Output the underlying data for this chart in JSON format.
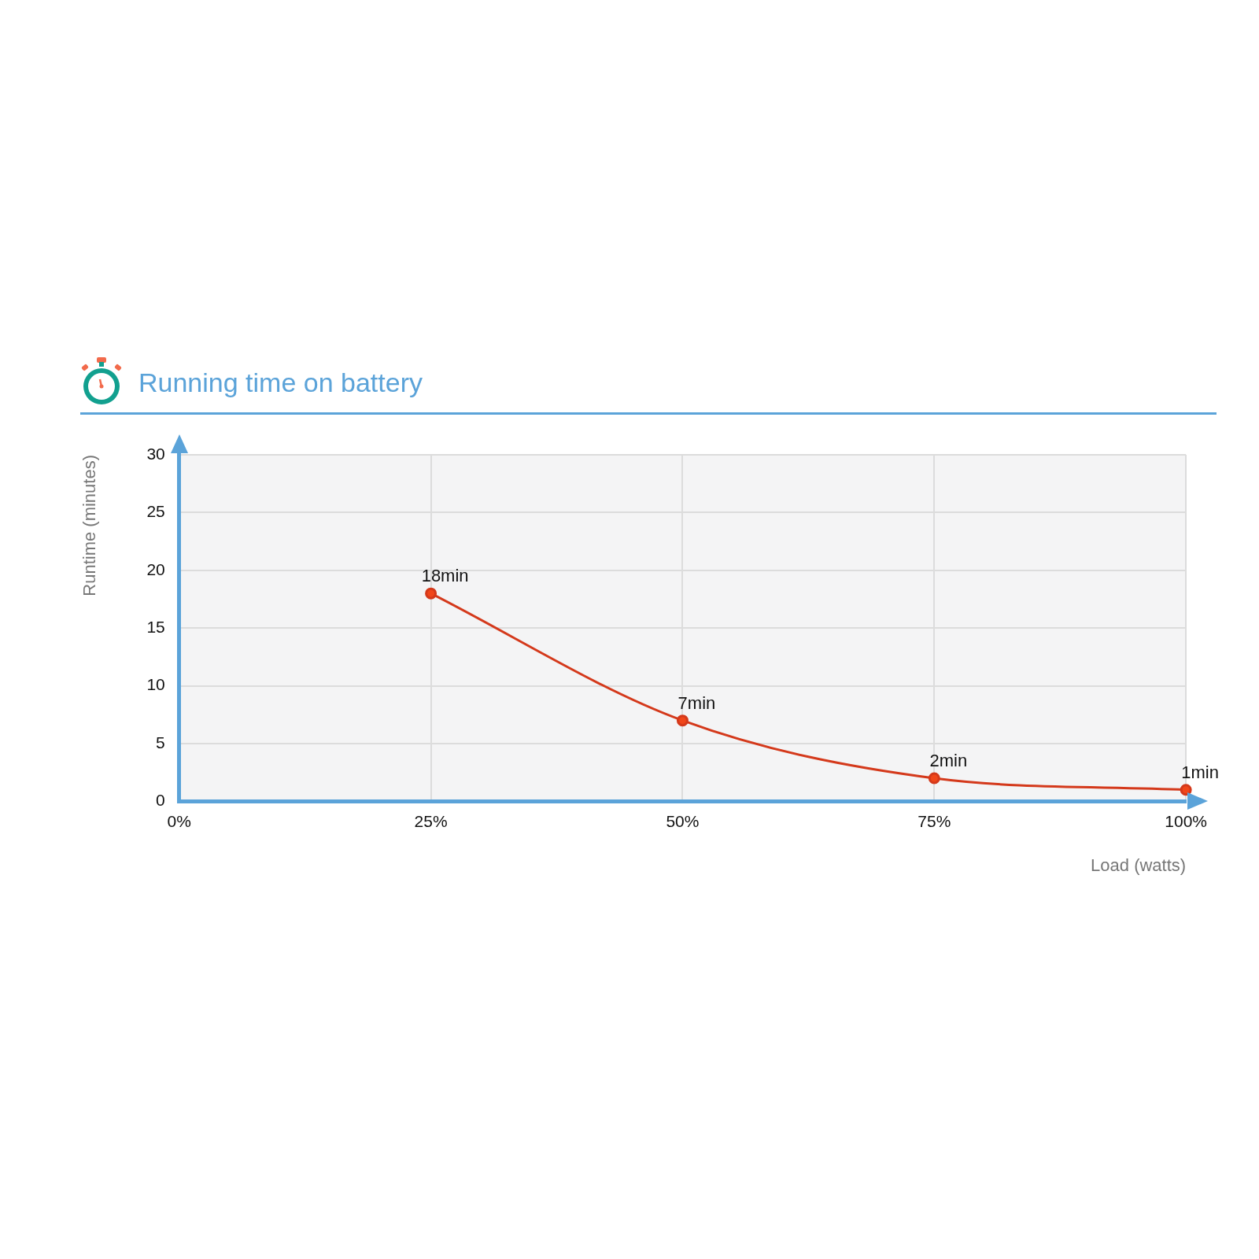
{
  "chart_data": {
    "type": "line",
    "title": "Running time on battery",
    "xlabel": "Load (watts)",
    "ylabel": "Runtime (minutes)",
    "categories": [
      "0%",
      "25%",
      "50%",
      "75%",
      "100%"
    ],
    "series": [
      {
        "color": "#d4391b",
        "values": [
          null,
          18,
          7,
          2,
          1
        ],
        "value_labels": [
          null,
          "18min",
          "7min",
          "2min",
          "1min"
        ]
      }
    ],
    "ylim": [
      0,
      30
    ],
    "yticks": [
      0,
      5,
      10,
      15,
      20,
      25,
      30
    ],
    "grid": true,
    "marker": "circle"
  }
}
